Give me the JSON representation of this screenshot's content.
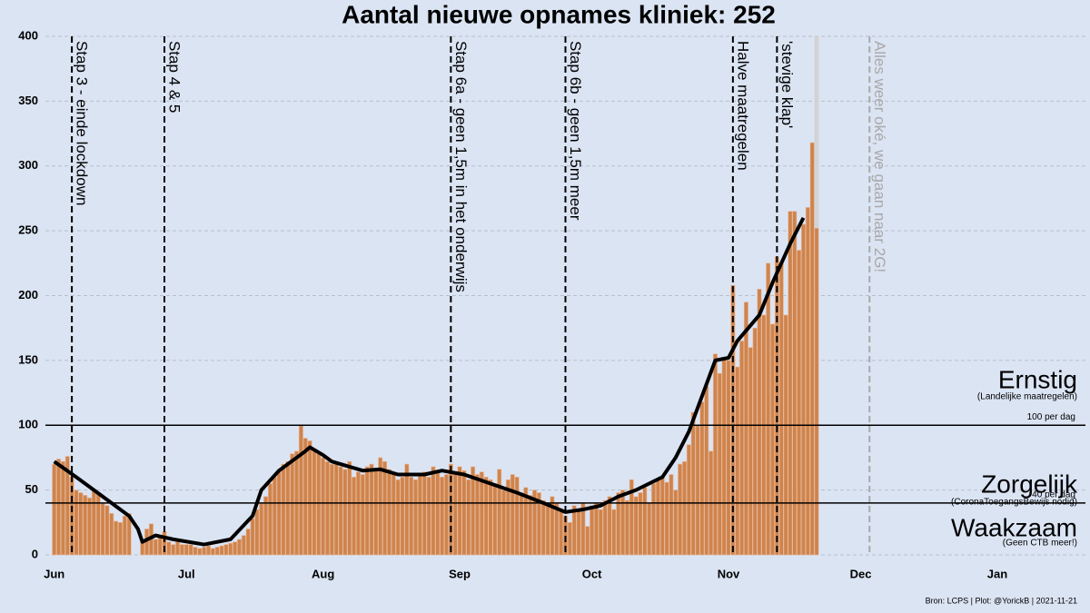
{
  "chart_data": {
    "type": "bar",
    "title": "Aantal nieuwe opnames kliniek:  252",
    "footer": "Bron: LCPS | Plot: @YorickB |  2021-11-21",
    "x": [
      0,
      1,
      2,
      3,
      4,
      5,
      6,
      7,
      8,
      9,
      10,
      11,
      12,
      13,
      14,
      15,
      16,
      17,
      18,
      19,
      20,
      21,
      22,
      23,
      24,
      25,
      26,
      27,
      28,
      29,
      30,
      31,
      32,
      33,
      34,
      35,
      36,
      37,
      38,
      39,
      40,
      41,
      42,
      43,
      44,
      45,
      46,
      47,
      48,
      49,
      50,
      51,
      52,
      53,
      54,
      55,
      56,
      57,
      58,
      59,
      60,
      61,
      62,
      63,
      64,
      65,
      66,
      67,
      68,
      69,
      70,
      71,
      72,
      73,
      74,
      75,
      76,
      77,
      78,
      79,
      80,
      81,
      82,
      83,
      84,
      85,
      86,
      87,
      88,
      89,
      90,
      91,
      92,
      93,
      94,
      95,
      96,
      97,
      98,
      99,
      100,
      101,
      102,
      103,
      104,
      105,
      106,
      107,
      108,
      109,
      110,
      111,
      112,
      113,
      114,
      115,
      116,
      117,
      118,
      119,
      120,
      121,
      122,
      123,
      124,
      125,
      126,
      127,
      128,
      129,
      130,
      131,
      132,
      133,
      134,
      135,
      136,
      137,
      138,
      139,
      140,
      141,
      142,
      143,
      144,
      145,
      146,
      147,
      148,
      149,
      150,
      151,
      152,
      153,
      154,
      155,
      156,
      157,
      158,
      159,
      160,
      161,
      162,
      163,
      164,
      165,
      166,
      167,
      168,
      169,
      170,
      171,
      172,
      173
    ],
    "values": [
      70,
      74,
      72,
      76,
      60,
      50,
      48,
      46,
      44,
      50,
      48,
      40,
      38,
      32,
      26,
      25,
      30,
      32,
      null,
      null,
      10,
      20,
      24,
      12,
      14,
      18,
      10,
      8,
      10,
      8,
      8,
      8,
      6,
      5,
      6,
      7,
      5,
      6,
      7,
      8,
      9,
      10,
      12,
      15,
      20,
      28,
      35,
      40,
      45,
      55,
      60,
      65,
      70,
      72,
      78,
      80,
      100,
      90,
      88,
      80,
      78,
      75,
      72,
      70,
      70,
      68,
      66,
      72,
      60,
      64,
      62,
      68,
      70,
      65,
      75,
      72,
      66,
      62,
      58,
      60,
      70,
      60,
      58,
      62,
      64,
      60,
      68,
      65,
      60,
      62,
      70,
      62,
      68,
      65,
      58,
      68,
      62,
      64,
      60,
      58,
      55,
      66,
      50,
      58,
      62,
      60,
      48,
      52,
      46,
      50,
      48,
      42,
      38,
      45,
      40,
      35,
      30,
      25,
      38,
      34,
      40,
      22,
      38,
      40,
      35,
      42,
      45,
      35,
      48,
      50,
      42,
      58,
      45,
      48,
      52,
      40,
      55,
      58,
      60,
      56,
      62,
      50,
      70,
      72,
      85,
      110,
      100,
      118,
      130,
      80,
      155,
      140,
      152,
      150,
      208,
      145,
      165,
      195,
      160,
      175,
      205,
      185,
      225,
      178,
      230,
      225,
      185,
      265,
      265,
      235,
      255,
      268,
      318,
      252
    ],
    "color": "#cf844d",
    "line": {
      "color": "#000000",
      "x": [
        0,
        5,
        9,
        13,
        17,
        19,
        20,
        23,
        27,
        34,
        40,
        45,
        47,
        51,
        57,
        58,
        61,
        63,
        70,
        74,
        78,
        84,
        88,
        93,
        99,
        105,
        111,
        116,
        120,
        124,
        128,
        132,
        138,
        141,
        144,
        150,
        153,
        155,
        160,
        163,
        167,
        170
      ],
      "values": [
        72,
        60,
        50,
        40,
        30,
        20,
        10,
        15,
        12,
        8,
        12,
        30,
        50,
        65,
        80,
        83,
        77,
        72,
        65,
        66,
        62,
        62,
        65,
        62,
        55,
        48,
        40,
        33,
        35,
        38,
        45,
        50,
        60,
        75,
        95,
        150,
        152,
        165,
        185,
        210,
        240,
        260
      ]
    },
    "xlim": [
      -2,
      234
    ],
    "xticks": [
      {
        "value": 0,
        "label": "Jun"
      },
      {
        "value": 30,
        "label": "Jul"
      },
      {
        "value": 61,
        "label": "Aug"
      },
      {
        "value": 92,
        "label": "Sep"
      },
      {
        "value": 122,
        "label": "Oct"
      },
      {
        "value": 153,
        "label": "Nov"
      },
      {
        "value": 183,
        "label": "Dec"
      },
      {
        "value": 214,
        "label": "Jan"
      }
    ],
    "ylim": [
      0,
      400
    ],
    "yticks": [
      0,
      50,
      100,
      150,
      200,
      250,
      300,
      350,
      400
    ],
    "grid": true,
    "vlines": [
      {
        "x": 4,
        "label": "Stap 3 - einde lockdown",
        "color": "#000000"
      },
      {
        "x": 25,
        "label": "Stap 4 & 5",
        "color": "#000000"
      },
      {
        "x": 90,
        "label": "Stap 6a - geen 1,5m in het onderwijs",
        "color": "#000000"
      },
      {
        "x": 116,
        "label": "Stap 6b - geen 1,5m meer",
        "color": "#000000"
      },
      {
        "x": 154,
        "label": "Halve maatregelen",
        "color": "#000000"
      },
      {
        "x": 164,
        "label": "'stevige klap'",
        "color": "#000000"
      },
      {
        "x": 185,
        "label": "Alles weer oké, we gaan naar 2G!",
        "color": "#a8a8a8"
      }
    ],
    "hlines": [
      {
        "y": 100,
        "label": "100 per dag"
      },
      {
        "y": 40,
        "label": "40 per dag"
      }
    ],
    "zones": [
      {
        "label": "Ernstig",
        "sublabel": "(Landelijke maatregelen)"
      },
      {
        "label": "Zorgelijk",
        "sublabel": "(CoronaToegangsBewijs nodig)"
      },
      {
        "label": "Waakzaam",
        "sublabel": "(Geen CTB meer!)"
      }
    ]
  }
}
